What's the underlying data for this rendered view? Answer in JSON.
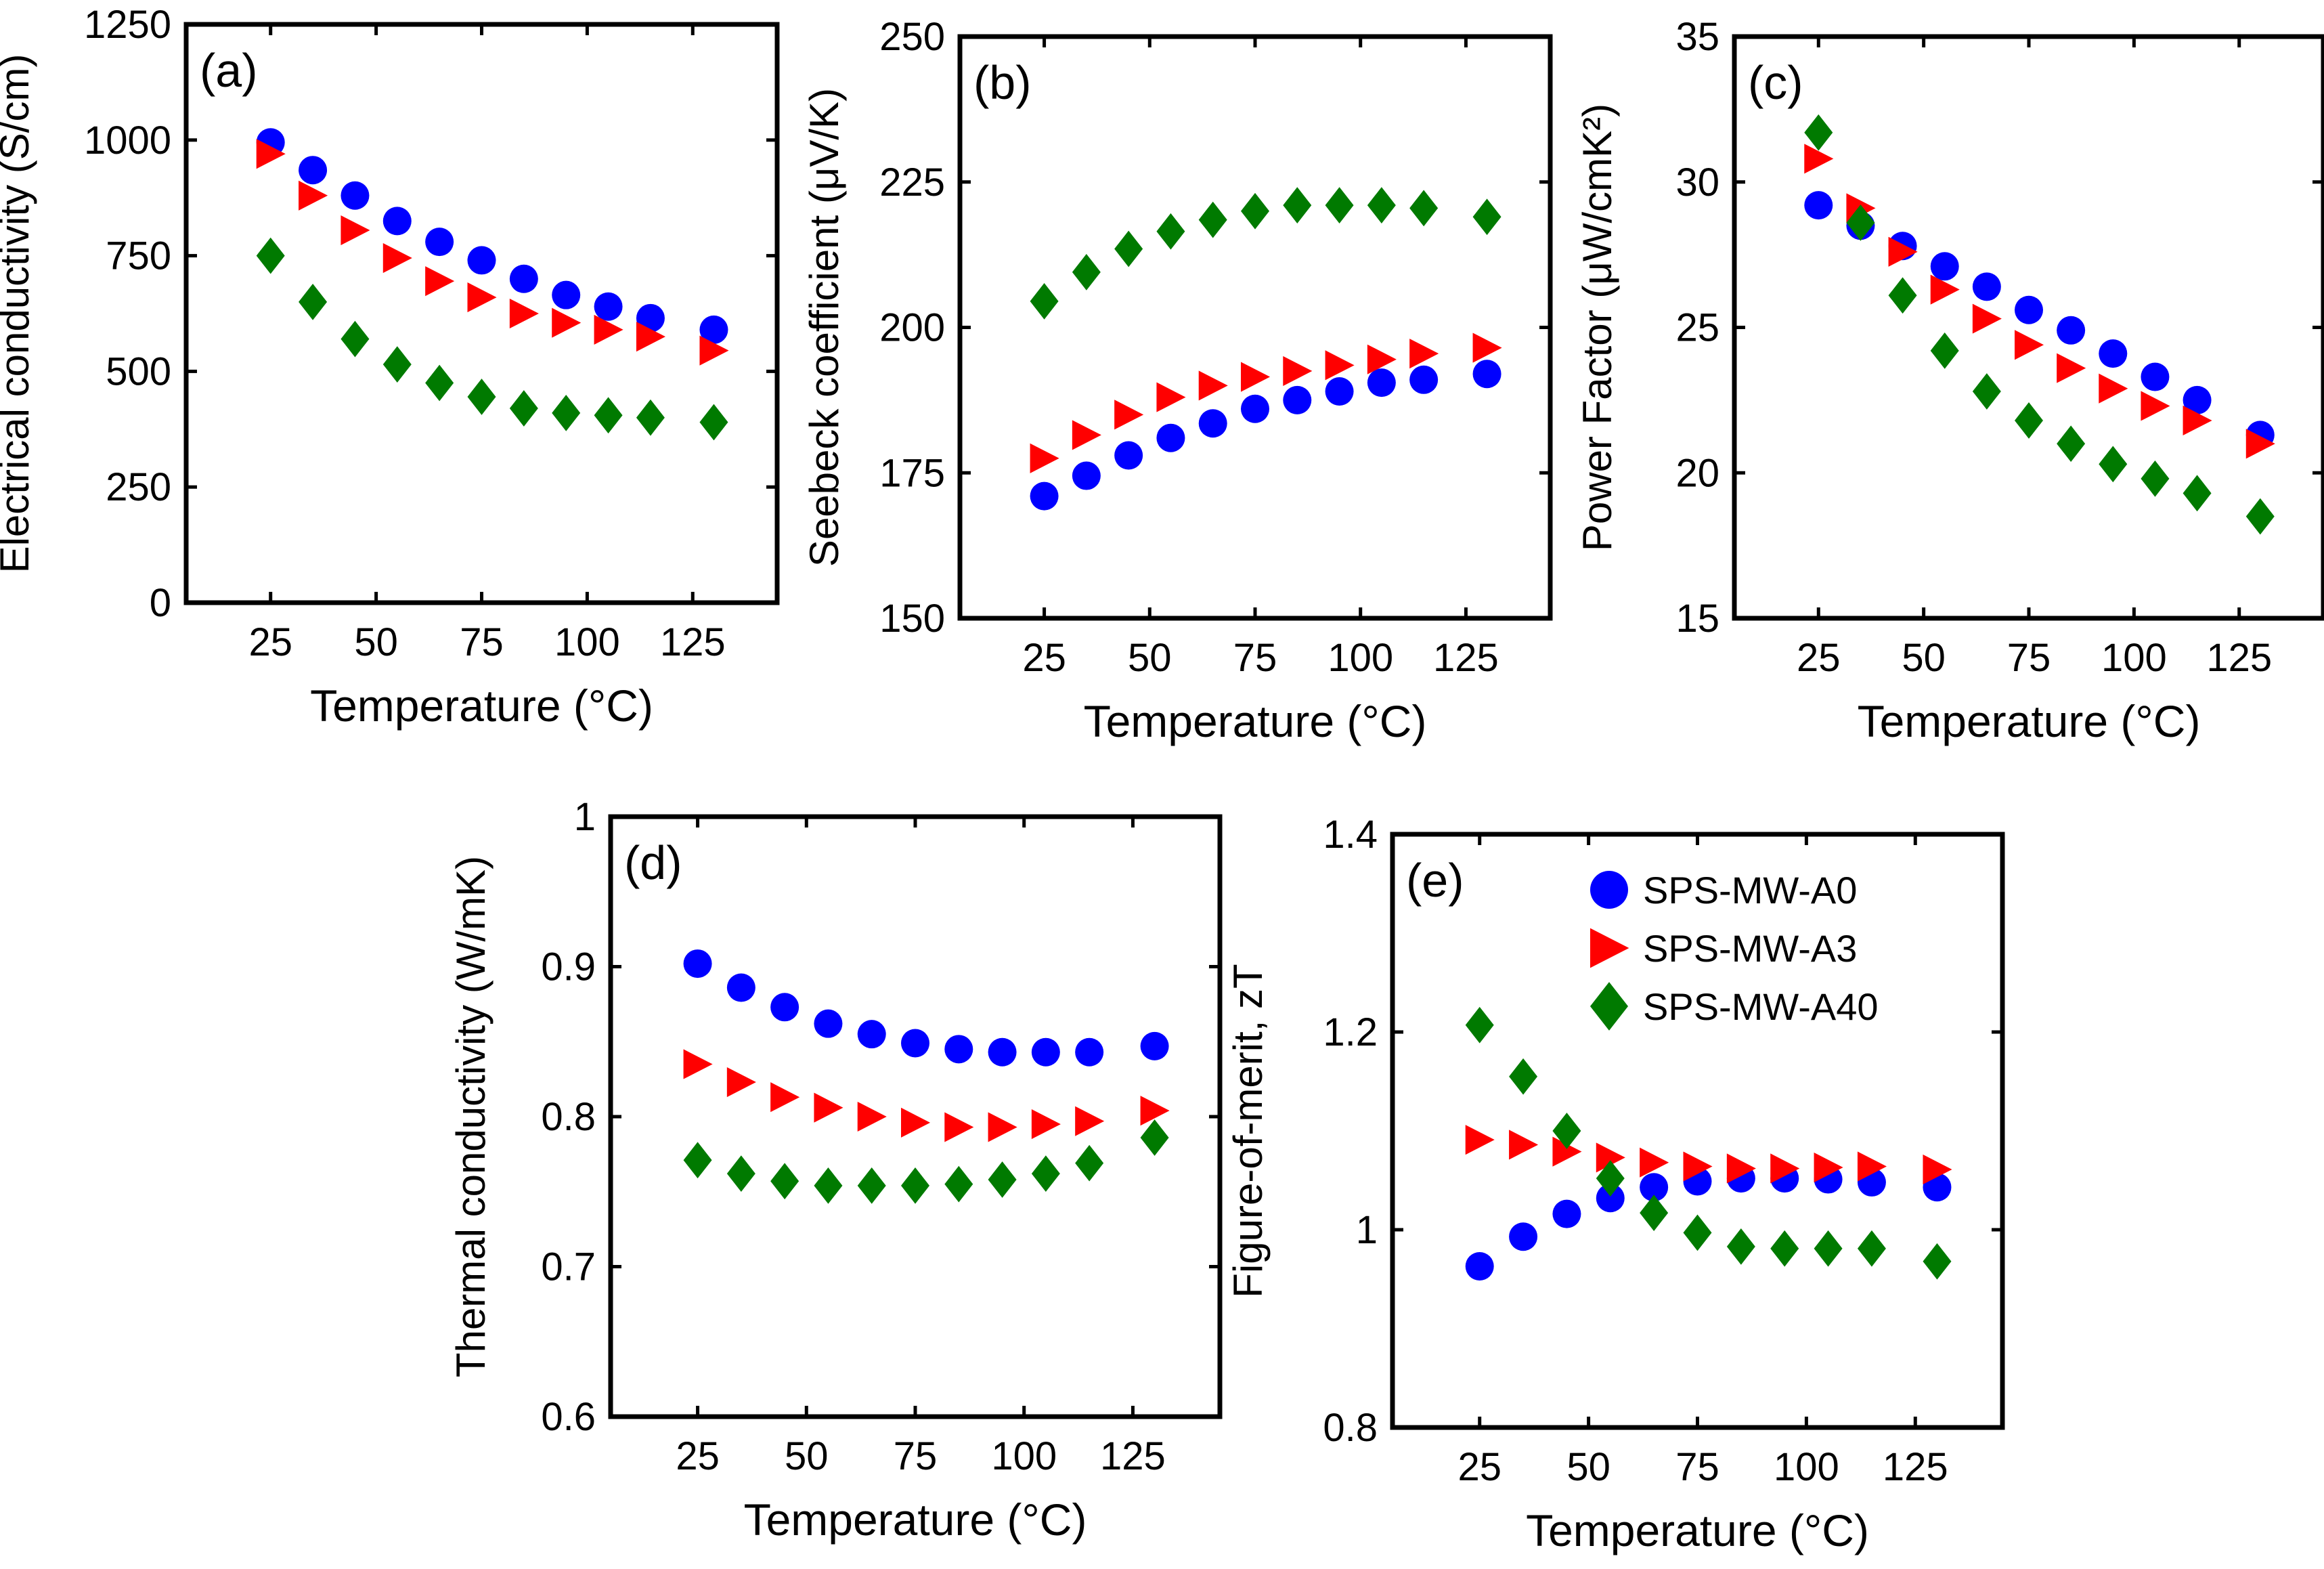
{
  "figure": {
    "markers": {
      "circle": {
        "color": "#0000ff"
      },
      "triangle": {
        "color": "#ff0000"
      },
      "diamond": {
        "color": "#007a00"
      }
    },
    "legend": {
      "entries": [
        {
          "label": "SPS-MW-A0",
          "marker": "circle"
        },
        {
          "label": "SPS-MW-A3",
          "marker": "triangle"
        },
        {
          "label": "SPS-MW-A40",
          "marker": "diamond"
        }
      ]
    }
  },
  "chart_data": [
    {
      "id": "a",
      "panel_label": "(a)",
      "type": "scatter",
      "xlabel": "Temperature (°C)",
      "ylabel": "Electrical conductivity (S/cm)",
      "xlim": [
        5,
        145
      ],
      "ylim": [
        0,
        1250
      ],
      "xticks": [
        25,
        50,
        75,
        100,
        125
      ],
      "yticks": [
        0,
        250,
        500,
        750,
        1000,
        1250
      ],
      "x": [
        25,
        35,
        45,
        55,
        65,
        75,
        85,
        95,
        105,
        115,
        130
      ],
      "series": [
        {
          "name": "SPS-MW-A0",
          "marker": "circle",
          "values": [
            995,
            935,
            880,
            825,
            780,
            740,
            700,
            665,
            640,
            615,
            590
          ]
        },
        {
          "name": "SPS-MW-A3",
          "marker": "triangle",
          "values": [
            970,
            880,
            805,
            745,
            695,
            660,
            625,
            605,
            590,
            575,
            545
          ]
        },
        {
          "name": "SPS-MW-A40",
          "marker": "diamond",
          "values": [
            750,
            650,
            570,
            515,
            475,
            445,
            420,
            410,
            405,
            400,
            390
          ]
        }
      ]
    },
    {
      "id": "b",
      "panel_label": "(b)",
      "type": "scatter",
      "xlabel": "Temperature (°C)",
      "ylabel": "Seebeck coefficient (μV/K)",
      "xlim": [
        5,
        145
      ],
      "ylim": [
        150,
        250
      ],
      "xticks": [
        25,
        50,
        75,
        100,
        125
      ],
      "yticks": [
        150,
        175,
        200,
        225,
        250
      ],
      "x": [
        25,
        35,
        45,
        55,
        65,
        75,
        85,
        95,
        105,
        115,
        130
      ],
      "series": [
        {
          "name": "SPS-MW-A0",
          "marker": "circle",
          "values": [
            171,
            174.5,
            178,
            181,
            183.5,
            186,
            187.5,
            189,
            190.5,
            191,
            192
          ]
        },
        {
          "name": "SPS-MW-A3",
          "marker": "triangle",
          "values": [
            177.5,
            181.5,
            185,
            188,
            190,
            191.5,
            192.5,
            193.5,
            194.5,
            195.5,
            196.5
          ]
        },
        {
          "name": "SPS-MW-A40",
          "marker": "diamond",
          "values": [
            204.5,
            209.5,
            213.5,
            216.5,
            218.5,
            220,
            221,
            221,
            221,
            220.5,
            219
          ]
        }
      ]
    },
    {
      "id": "c",
      "panel_label": "(c)",
      "type": "scatter",
      "xlabel": "Temperature (°C)",
      "ylabel": "Power Factor (μW/cmK²)",
      "xlim": [
        5,
        145
      ],
      "ylim": [
        15,
        35
      ],
      "xticks": [
        25,
        50,
        75,
        100,
        125
      ],
      "yticks": [
        15,
        20,
        25,
        30,
        35
      ],
      "x": [
        25,
        35,
        45,
        55,
        65,
        75,
        85,
        95,
        105,
        115,
        130
      ],
      "series": [
        {
          "name": "SPS-MW-A0",
          "marker": "circle",
          "values": [
            29.2,
            28.5,
            27.8,
            27.1,
            26.4,
            25.6,
            24.9,
            24.1,
            23.3,
            22.5,
            21.3
          ]
        },
        {
          "name": "SPS-MW-A3",
          "marker": "triangle",
          "values": [
            30.8,
            29.1,
            27.6,
            26.3,
            25.3,
            24.4,
            23.6,
            22.9,
            22.3,
            21.8,
            21.0
          ]
        },
        {
          "name": "SPS-MW-A40",
          "marker": "diamond",
          "values": [
            31.7,
            28.6,
            26.1,
            24.2,
            22.8,
            21.8,
            21.0,
            20.3,
            19.8,
            19.3,
            18.5
          ]
        }
      ]
    },
    {
      "id": "d",
      "panel_label": "(d)",
      "type": "scatter",
      "xlabel": "Temperature (°C)",
      "ylabel": "Thermal conductivity (W/mK)",
      "xlim": [
        5,
        145
      ],
      "ylim": [
        0.6,
        1.0
      ],
      "xticks": [
        25,
        50,
        75,
        100,
        125
      ],
      "yticks": [
        0.6,
        0.7,
        0.8,
        0.9,
        1.0
      ],
      "ytick_labels": [
        "0.6",
        "0.7",
        "0.8",
        "0.9",
        "1"
      ],
      "x": [
        25,
        35,
        45,
        55,
        65,
        75,
        85,
        95,
        105,
        115,
        130
      ],
      "series": [
        {
          "name": "SPS-MW-A0",
          "marker": "circle",
          "values": [
            0.902,
            0.886,
            0.873,
            0.862,
            0.855,
            0.849,
            0.845,
            0.843,
            0.843,
            0.843,
            0.847
          ]
        },
        {
          "name": "SPS-MW-A3",
          "marker": "triangle",
          "values": [
            0.835,
            0.823,
            0.813,
            0.806,
            0.8,
            0.796,
            0.793,
            0.793,
            0.795,
            0.797,
            0.804
          ]
        },
        {
          "name": "SPS-MW-A40",
          "marker": "diamond",
          "values": [
            0.771,
            0.762,
            0.757,
            0.754,
            0.754,
            0.754,
            0.755,
            0.758,
            0.762,
            0.769,
            0.786
          ]
        }
      ]
    },
    {
      "id": "e",
      "panel_label": "(e)",
      "type": "scatter",
      "xlabel": "Temperature (°C)",
      "ylabel": "Figure-of-merit, zT",
      "xlim": [
        5,
        145
      ],
      "ylim": [
        0.8,
        1.4
      ],
      "xticks": [
        25,
        50,
        75,
        100,
        125
      ],
      "yticks": [
        0.8,
        1.0,
        1.2,
        1.4
      ],
      "ytick_labels": [
        "0.8",
        "1",
        "1.2",
        "1.4"
      ],
      "legend_position": "top-right",
      "x": [
        25,
        35,
        45,
        55,
        65,
        75,
        85,
        95,
        105,
        115,
        130
      ],
      "series": [
        {
          "name": "SPS-MW-A0",
          "marker": "circle",
          "values": [
            0.963,
            0.993,
            1.016,
            1.032,
            1.043,
            1.049,
            1.052,
            1.052,
            1.051,
            1.048,
            1.043
          ]
        },
        {
          "name": "SPS-MW-A3",
          "marker": "triangle",
          "values": [
            1.091,
            1.086,
            1.079,
            1.073,
            1.068,
            1.064,
            1.062,
            1.062,
            1.063,
            1.064,
            1.061
          ]
        },
        {
          "name": "SPS-MW-A40",
          "marker": "diamond",
          "values": [
            1.207,
            1.155,
            1.1,
            1.052,
            1.017,
            0.997,
            0.983,
            0.981,
            0.981,
            0.981,
            0.968
          ]
        }
      ]
    }
  ]
}
